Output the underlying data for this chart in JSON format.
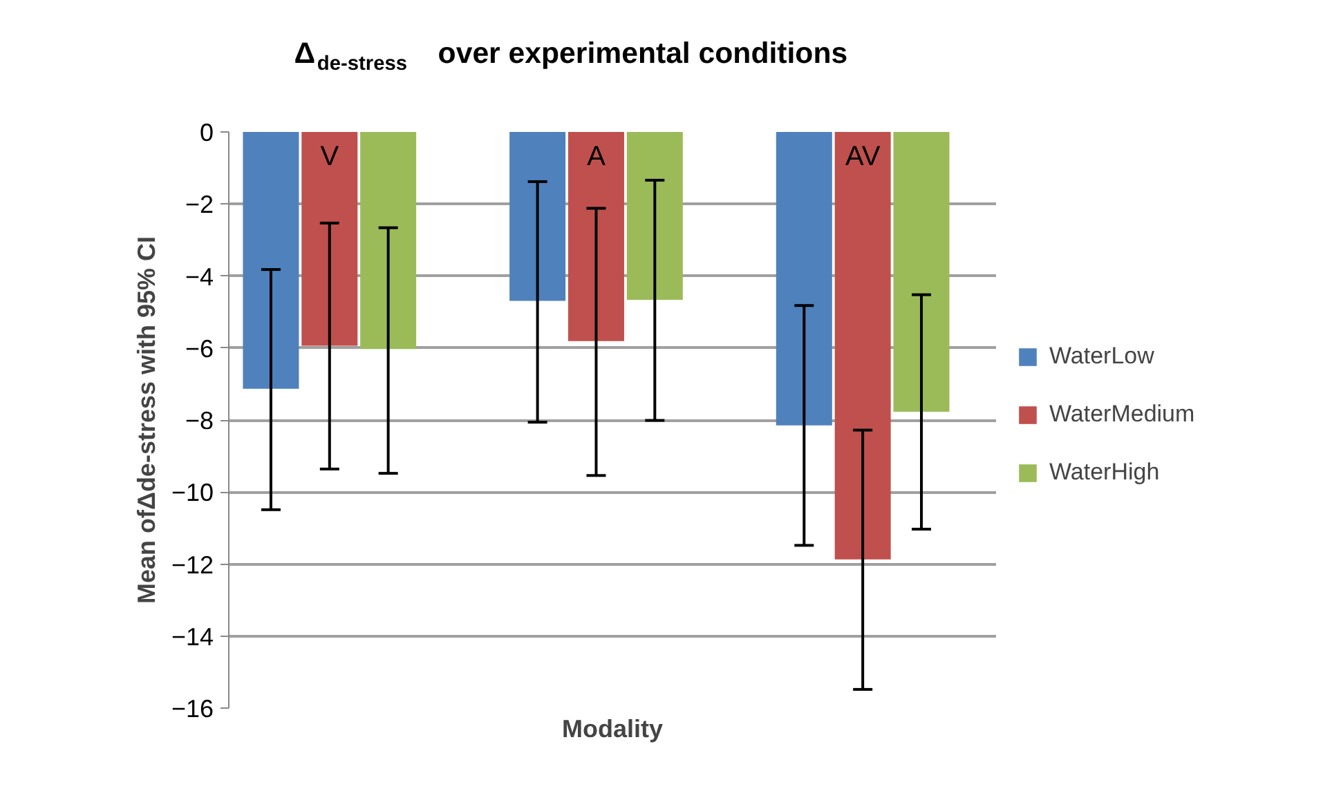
{
  "chart_data": {
    "type": "bar",
    "title": "Δ$_{de-stress}$ over experimental conditions",
    "xlabel": "Modality",
    "ylabel": "Mean ofΔde-stress with 95% CI",
    "categories": [
      "V",
      "A",
      "AV"
    ],
    "series": [
      {
        "name": "WaterLow",
        "color": "#4f81bd",
        "values": [
          -7.13,
          -4.69,
          -8.15
        ],
        "errors": [
          [
            -10.49,
            -3.82
          ],
          [
            -8.06,
            -1.38
          ],
          [
            -11.48,
            -4.82
          ]
        ]
      },
      {
        "name": "WaterMedium",
        "color": "#c0504d",
        "values": [
          -5.94,
          -5.81,
          -11.87
        ],
        "errors": [
          [
            -9.36,
            -2.53
          ],
          [
            -9.54,
            -2.12
          ],
          [
            -15.48,
            -8.28
          ]
        ]
      },
      {
        "name": "WaterHigh",
        "color": "#9bbb59",
        "values": [
          -6.03,
          -4.66,
          -7.77
        ],
        "errors": [
          [
            -9.48,
            -2.66
          ],
          [
            -8.01,
            -1.34
          ],
          [
            -11.03,
            -4.52
          ]
        ]
      }
    ],
    "ylim": [
      -16,
      0
    ],
    "yticks": [
      -16,
      -14,
      -12,
      -10,
      -8,
      -6,
      -4,
      -2,
      0
    ],
    "grid": "y",
    "legend": "right",
    "tick_labels": "y"
  }
}
